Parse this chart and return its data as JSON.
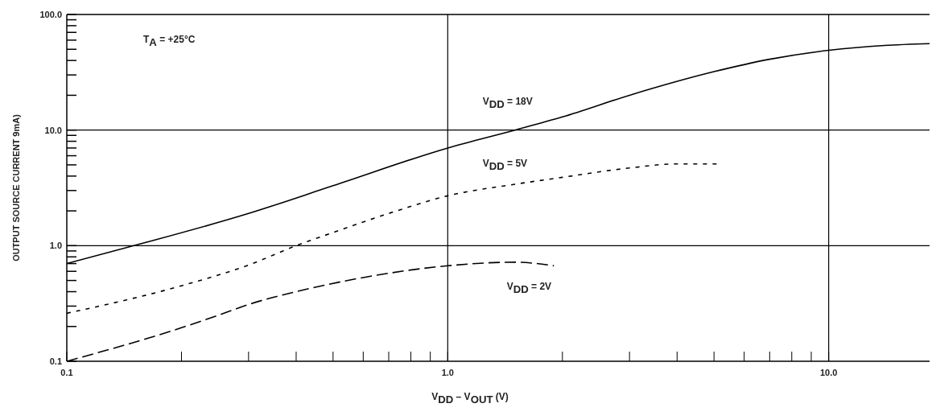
{
  "chart_data": {
    "type": "line",
    "xlabel": "V$_{DD}$ – V$_{OUT}$ (V)",
    "ylabel": "OUTPUT SOURCE CURRENT 9mA)",
    "log": "xy",
    "grid": true,
    "legend": false,
    "marker": "none",
    "annotations": [
      "T$_{A}$ = +25°C"
    ],
    "xlim": [
      0.1,
      18.4
    ],
    "xticks": [
      {
        "value": 0.1,
        "label": "0.1"
      },
      {
        "value": 0.2,
        "label": null
      },
      {
        "value": 0.3,
        "label": null
      },
      {
        "value": 0.4,
        "label": null
      },
      {
        "value": 0.5,
        "label": null
      },
      {
        "value": 0.6,
        "label": null
      },
      {
        "value": 0.7,
        "label": null
      },
      {
        "value": 0.8,
        "label": null
      },
      {
        "value": 0.9,
        "label": null
      },
      {
        "value": 1,
        "label": "1.0"
      },
      {
        "value": 2,
        "label": null
      },
      {
        "value": 3,
        "label": null
      },
      {
        "value": 4,
        "label": null
      },
      {
        "value": 5,
        "label": null
      },
      {
        "value": 6,
        "label": null
      },
      {
        "value": 7,
        "label": null
      },
      {
        "value": 8,
        "label": null
      },
      {
        "value": 9,
        "label": null
      },
      {
        "value": 10,
        "label": "10.0"
      }
    ],
    "ylim": [
      0.1,
      100
    ],
    "yticks": [
      {
        "value": 0.1,
        "label": "0.1"
      },
      {
        "value": 0.2,
        "label": null
      },
      {
        "value": 0.3,
        "label": null
      },
      {
        "value": 0.4,
        "label": null
      },
      {
        "value": 0.5,
        "label": null
      },
      {
        "value": 0.6,
        "label": null
      },
      {
        "value": 0.7,
        "label": null
      },
      {
        "value": 0.8,
        "label": null
      },
      {
        "value": 0.9,
        "label": null
      },
      {
        "value": 1,
        "label": "1.0"
      },
      {
        "value": 2,
        "label": null
      },
      {
        "value": 3,
        "label": null
      },
      {
        "value": 4,
        "label": null
      },
      {
        "value": 5,
        "label": null
      },
      {
        "value": 6,
        "label": null
      },
      {
        "value": 7,
        "label": null
      },
      {
        "value": 8,
        "label": null
      },
      {
        "value": 9,
        "label": null
      },
      {
        "value": 10,
        "label": "10.0"
      },
      {
        "value": 20,
        "label": null
      },
      {
        "value": 30,
        "label": null
      },
      {
        "value": 40,
        "label": null
      },
      {
        "value": 50,
        "label": null
      },
      {
        "value": 60,
        "label": null
      },
      {
        "value": 70,
        "label": null
      },
      {
        "value": 80,
        "label": null
      },
      {
        "value": 90,
        "label": null
      },
      {
        "value": 100,
        "label": "100.0"
      }
    ],
    "series": [
      {
        "name": "V$_{DD}$ = 18V",
        "color": "#000000",
        "line_style": "solid",
        "x": [
          0.1,
          0.15,
          0.3,
          0.5,
          1,
          1.5,
          2,
          3,
          5,
          7,
          10,
          14,
          18.4
        ],
        "values": [
          0.7,
          1.0,
          1.9,
          3.3,
          7.0,
          10,
          13,
          20,
          32,
          41,
          49,
          54,
          56
        ]
      },
      {
        "name": "V$_{DD}$ = 5V",
        "color": "#000000",
        "line_style": "dotted",
        "x": [
          0.1,
          0.2,
          0.3,
          0.4,
          0.5,
          0.7,
          1,
          1.5,
          2,
          3,
          4,
          5.1
        ],
        "values": [
          0.26,
          0.45,
          0.68,
          1.0,
          1.3,
          1.9,
          2.7,
          3.4,
          3.9,
          4.7,
          5.1,
          5.1
        ]
      },
      {
        "name": "V$_{DD}$ = 2V",
        "color": "#000000",
        "line_style": "dashed",
        "x": [
          0.1,
          0.2,
          0.25,
          0.3,
          0.4,
          0.6,
          1,
          1.5,
          1.9
        ],
        "values": [
          0.1,
          0.195,
          0.25,
          0.31,
          0.4,
          0.53,
          0.67,
          0.72,
          0.67
        ]
      }
    ]
  }
}
